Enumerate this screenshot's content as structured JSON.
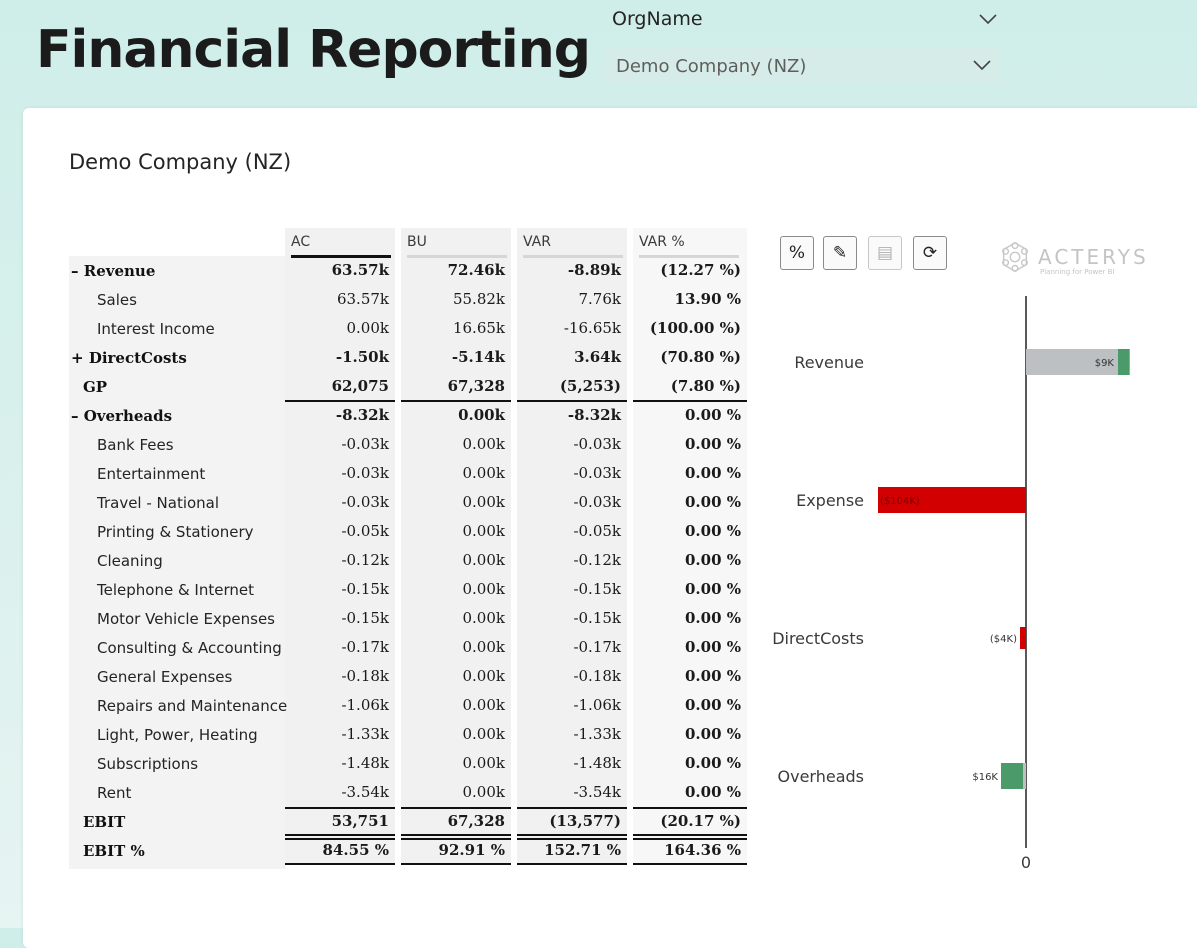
{
  "header": {
    "title": "Financial Reporting"
  },
  "slicer": {
    "title": "OrgName",
    "value": "Demo Company (NZ)"
  },
  "report": {
    "title": "Demo Company (NZ)",
    "columns": [
      "AC",
      "BU",
      "VAR",
      "VAR %"
    ],
    "rows": [
      {
        "label": "Revenue",
        "sign": "–",
        "style": "group",
        "ac": "63.57k",
        "bu": "72.46k",
        "var": "-8.89k",
        "varpct": "(12.27 %)"
      },
      {
        "label": "Sales",
        "sign": "",
        "style": "detail",
        "ac": "63.57k",
        "bu": "55.82k",
        "var": "7.76k",
        "varpct": "13.90 %"
      },
      {
        "label": "Interest Income",
        "sign": "",
        "style": "detail",
        "ac": "0.00k",
        "bu": "16.65k",
        "var": "-16.65k",
        "varpct": "(100.00 %)"
      },
      {
        "label": "DirectCosts",
        "sign": "+",
        "style": "group",
        "ac": "-1.50k",
        "bu": "-5.14k",
        "var": "3.64k",
        "varpct": "(70.80 %)"
      },
      {
        "label": "GP",
        "sign": "",
        "style": "total",
        "ac": "62,075",
        "bu": "67,328",
        "var": "(5,253)",
        "varpct": "(7.80 %)"
      },
      {
        "label": "Overheads",
        "sign": "–",
        "style": "group",
        "ac": "-8.32k",
        "bu": "0.00k",
        "var": "-8.32k",
        "varpct": "0.00 %"
      },
      {
        "label": "Bank Fees",
        "sign": "",
        "style": "detail",
        "ac": "-0.03k",
        "bu": "0.00k",
        "var": "-0.03k",
        "varpct": "0.00 %"
      },
      {
        "label": "Entertainment",
        "sign": "",
        "style": "detail",
        "ac": "-0.03k",
        "bu": "0.00k",
        "var": "-0.03k",
        "varpct": "0.00 %"
      },
      {
        "label": "Travel - National",
        "sign": "",
        "style": "detail",
        "ac": "-0.03k",
        "bu": "0.00k",
        "var": "-0.03k",
        "varpct": "0.00 %"
      },
      {
        "label": "Printing & Stationery",
        "sign": "",
        "style": "detail",
        "ac": "-0.05k",
        "bu": "0.00k",
        "var": "-0.05k",
        "varpct": "0.00 %"
      },
      {
        "label": "Cleaning",
        "sign": "",
        "style": "detail",
        "ac": "-0.12k",
        "bu": "0.00k",
        "var": "-0.12k",
        "varpct": "0.00 %"
      },
      {
        "label": "Telephone & Internet",
        "sign": "",
        "style": "detail",
        "ac": "-0.15k",
        "bu": "0.00k",
        "var": "-0.15k",
        "varpct": "0.00 %"
      },
      {
        "label": "Motor Vehicle Expenses",
        "sign": "",
        "style": "detail",
        "ac": "-0.15k",
        "bu": "0.00k",
        "var": "-0.15k",
        "varpct": "0.00 %"
      },
      {
        "label": "Consulting & Accounting",
        "sign": "",
        "style": "detail",
        "ac": "-0.17k",
        "bu": "0.00k",
        "var": "-0.17k",
        "varpct": "0.00 %"
      },
      {
        "label": "General Expenses",
        "sign": "",
        "style": "detail",
        "ac": "-0.18k",
        "bu": "0.00k",
        "var": "-0.18k",
        "varpct": "0.00 %"
      },
      {
        "label": "Repairs and Maintenance",
        "sign": "",
        "style": "detail",
        "ac": "-1.06k",
        "bu": "0.00k",
        "var": "-1.06k",
        "varpct": "0.00 %"
      },
      {
        "label": "Light, Power, Heating",
        "sign": "",
        "style": "detail",
        "ac": "-1.33k",
        "bu": "0.00k",
        "var": "-1.33k",
        "varpct": "0.00 %"
      },
      {
        "label": "Subscriptions",
        "sign": "",
        "style": "detail",
        "ac": "-1.48k",
        "bu": "0.00k",
        "var": "-1.48k",
        "varpct": "0.00 %"
      },
      {
        "label": "Rent",
        "sign": "",
        "style": "detail",
        "ac": "-3.54k",
        "bu": "0.00k",
        "var": "-3.54k",
        "varpct": "0.00 %"
      },
      {
        "label": "EBIT",
        "sign": "",
        "style": "total",
        "ac": "53,751",
        "bu": "67,328",
        "var": "(13,577)",
        "varpct": "(20.17 %)"
      },
      {
        "label": "EBIT %",
        "sign": "",
        "style": "total",
        "ac": "84.55 %",
        "bu": "92.91 %",
        "var": "152.71 %",
        "varpct": "164.36 %"
      }
    ]
  },
  "toolbar": {
    "buttons": [
      {
        "name": "percent-button",
        "icon": "percent-icon",
        "glyph": "%"
      },
      {
        "name": "edit-button",
        "icon": "pencil-icon",
        "glyph": "✎"
      },
      {
        "name": "save-button",
        "icon": "save-icon",
        "glyph": "▤"
      },
      {
        "name": "refresh-button",
        "icon": "refresh-icon",
        "glyph": "⟳"
      }
    ]
  },
  "logo": {
    "name": "ACTERYS",
    "tagline": "Planning for Power BI"
  },
  "colors": {
    "positive": "#4a9a6a",
    "negative": "#d20000",
    "base": "#bcc0c2"
  },
  "chart_data": {
    "type": "bar",
    "orientation": "horizontal",
    "categories": [
      "Revenue",
      "Expense",
      "DirectCosts",
      "Overheads"
    ],
    "base_values": [
      63.57,
      -104,
      -1.5,
      -8.32
    ],
    "variance_values": [
      9,
      0,
      -4,
      16
    ],
    "data_labels": [
      "$9K",
      "($104K)",
      "($4K)",
      "$16K"
    ],
    "axis_zero_label": "0"
  }
}
